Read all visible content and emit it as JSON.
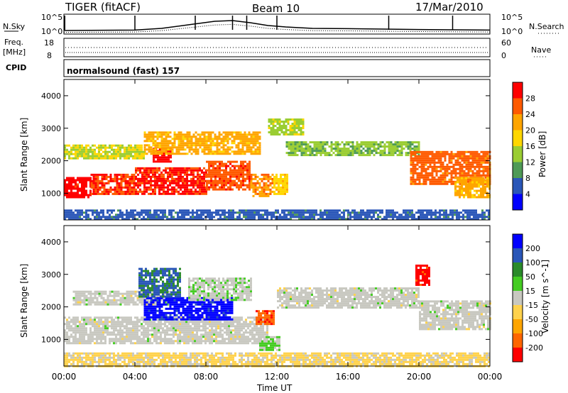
{
  "header": {
    "radar": "TIGER (fitACF)",
    "beam": "Beam 10",
    "date": "17/Mar/2010"
  },
  "sky_panel": {
    "left_label": "N.Sky",
    "right_label": "N.Search",
    "left_top_tick": "10^5",
    "left_bottom_tick": "10^0",
    "right_top_tick": "10^5",
    "right_bottom_tick": "10^0",
    "nsky_profile": [
      [
        0,
        0.15
      ],
      [
        4,
        0.18
      ],
      [
        5.5,
        0.3
      ],
      [
        7,
        0.55
      ],
      [
        8.5,
        0.8
      ],
      [
        9.5,
        0.85
      ],
      [
        10.5,
        0.7
      ],
      [
        11.5,
        0.5
      ],
      [
        12.5,
        0.4
      ],
      [
        14,
        0.3
      ],
      [
        16,
        0.28
      ],
      [
        18,
        0.25
      ],
      [
        20,
        0.22
      ],
      [
        22,
        0.2
      ],
      [
        24,
        0.18
      ]
    ],
    "nsky_spikes": [
      0.05,
      4.0,
      7.4,
      9.5,
      10.3,
      12.0,
      18.3,
      21.9
    ]
  },
  "freq_panel": {
    "left_label": "Freq.",
    "left_unit": "[MHz]",
    "right_label": "Nave",
    "left_top_tick": "18",
    "left_bottom_tick": "8",
    "right_top_tick": "60",
    "right_bottom_tick": "0"
  },
  "cpid_panel": {
    "label": "CPID",
    "text": "normalsound (fast) 157"
  },
  "power_panel": {
    "colorbar_title": "Power [dB]",
    "colorbar_levels": [
      "4",
      "8",
      "12",
      "16",
      "20",
      "24",
      "28"
    ],
    "colorbar_colors": [
      "#0000ff",
      "#2a56b8",
      "#4e9a56",
      "#9acd32",
      "#ffd700",
      "#ffa500",
      "#ff5a00",
      "#ff0000"
    ]
  },
  "velocity_panel": {
    "colorbar_title": "Velocity [m s^-1]",
    "colorbar_levels": [
      "-200",
      "-100",
      "-50",
      "-15",
      "15",
      "50",
      "100",
      "200"
    ],
    "colorbar_colors": [
      "#ff0000",
      "#ff6600",
      "#ffa500",
      "#ffd24d",
      "#c8c8c0",
      "#44cc22",
      "#2a8a2a",
      "#2a56b8",
      "#0000ff"
    ]
  },
  "axes": {
    "ylabel": "Slant Range [km]",
    "xlabel": "Time UT",
    "ytick_labels": [
      "1000",
      "2000",
      "3000",
      "4000"
    ],
    "xtick_labels": [
      "00:00",
      "04:00",
      "08:00",
      "12:00",
      "16:00",
      "20:00",
      "00:00"
    ]
  },
  "chart_data": {
    "type": "heatmap",
    "title": "TIGER (fitACF) Beam 10 17/Mar/2010",
    "xlabel": "Time UT",
    "ylabel": "Slant Range [km]",
    "xlim": [
      0,
      24
    ],
    "ylim": [
      180,
      4500
    ],
    "x_unit": "hours UT",
    "panels": [
      {
        "name": "Power",
        "colorbar": "Power [dB]",
        "range": [
          0,
          30
        ],
        "regions": [
          {
            "t0": 0.0,
            "t1": 1.5,
            "r0": 900,
            "r1": 1500,
            "value": 28
          },
          {
            "t0": 1.5,
            "t1": 4.0,
            "r0": 950,
            "r1": 1600,
            "value": 26
          },
          {
            "t0": 4.0,
            "t1": 8.0,
            "r0": 1000,
            "r1": 1800,
            "value": 27
          },
          {
            "t0": 8.0,
            "t1": 10.5,
            "r0": 1100,
            "r1": 2000,
            "value": 25
          },
          {
            "t0": 10.5,
            "t1": 11.8,
            "r0": 900,
            "r1": 1600,
            "value": 22
          },
          {
            "t0": 11.8,
            "t1": 12.6,
            "r0": 1000,
            "r1": 1600,
            "value": 18
          },
          {
            "t0": 5.0,
            "t1": 6.0,
            "r0": 2000,
            "r1": 2400,
            "value": 28
          },
          {
            "t0": 4.5,
            "t1": 11.0,
            "r0": 2200,
            "r1": 2900,
            "value": 20
          },
          {
            "t0": 0.0,
            "t1": 4.5,
            "r0": 2100,
            "r1": 2500,
            "value": 15
          },
          {
            "t0": 11.5,
            "t1": 13.5,
            "r0": 2800,
            "r1": 3300,
            "value": 14
          },
          {
            "t0": 12.5,
            "t1": 20.0,
            "r0": 2200,
            "r1": 2600,
            "value": 12
          },
          {
            "t0": 19.5,
            "t1": 24.0,
            "r0": 1300,
            "r1": 2300,
            "value": 24
          },
          {
            "t0": 22.0,
            "t1": 24.0,
            "r0": 900,
            "r1": 1500,
            "value": 20
          },
          {
            "t0": 0.0,
            "t1": 24.0,
            "r0": 180,
            "r1": 500,
            "value": 6
          }
        ]
      },
      {
        "name": "Velocity",
        "colorbar": "Velocity [m s^-1]",
        "range": [
          -250,
          250
        ],
        "regions": [
          {
            "t0": 0.0,
            "t1": 11.5,
            "r0": 900,
            "r1": 1700,
            "value": 0
          },
          {
            "t0": 0.5,
            "t1": 6.0,
            "r0": 2100,
            "r1": 2500,
            "value": 0
          },
          {
            "t0": 4.5,
            "t1": 9.5,
            "r0": 1600,
            "r1": 2300,
            "value": 220
          },
          {
            "t0": 4.2,
            "t1": 6.5,
            "r0": 2300,
            "r1": 3200,
            "value": 150
          },
          {
            "t0": 7.0,
            "t1": 10.5,
            "r0": 2200,
            "r1": 2900,
            "value": 10
          },
          {
            "t0": 10.8,
            "t1": 11.8,
            "r0": 1500,
            "r1": 1900,
            "value": -180
          },
          {
            "t0": 11.0,
            "t1": 12.2,
            "r0": 700,
            "r1": 1100,
            "value": 40
          },
          {
            "t0": 12.0,
            "t1": 20.0,
            "r0": 2000,
            "r1": 2600,
            "value": 0
          },
          {
            "t0": 20.0,
            "t1": 24.0,
            "r0": 1300,
            "r1": 2200,
            "value": 0
          },
          {
            "t0": 19.8,
            "t1": 20.6,
            "r0": 2700,
            "r1": 3300,
            "value": -220
          },
          {
            "t0": 0.0,
            "t1": 24.0,
            "r0": 180,
            "r1": 600,
            "value": -40
          }
        ]
      }
    ]
  }
}
